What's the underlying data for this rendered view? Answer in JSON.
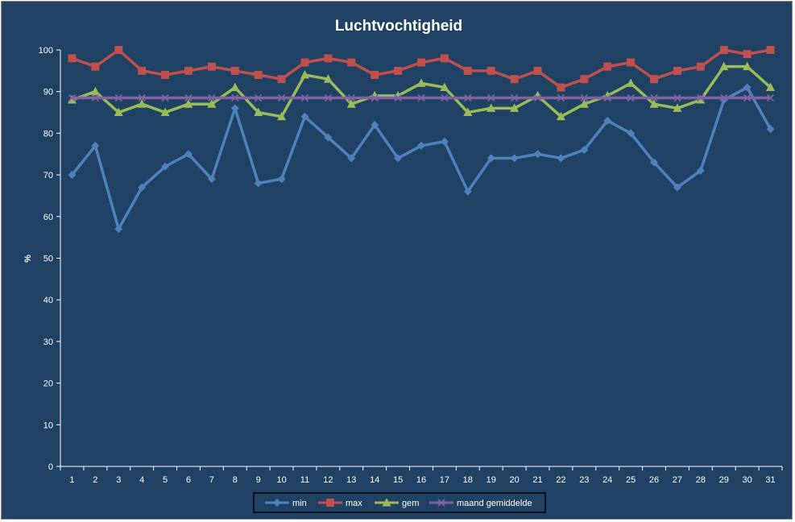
{
  "chart_data": {
    "type": "line",
    "title": "Luchtvochtigheid",
    "xlabel": "",
    "ylabel": "%",
    "ylim": [
      0,
      100
    ],
    "yticks": [
      0,
      10,
      20,
      30,
      40,
      50,
      60,
      70,
      80,
      90,
      100
    ],
    "categories": [
      "1",
      "2",
      "3",
      "4",
      "5",
      "6",
      "7",
      "8",
      "9",
      "10",
      "11",
      "12",
      "13",
      "14",
      "15",
      "16",
      "17",
      "18",
      "19",
      "20",
      "21",
      "22",
      "23",
      "24",
      "25",
      "26",
      "27",
      "28",
      "29",
      "30",
      "31"
    ],
    "grid": false,
    "legend_position": "bottom",
    "series": [
      {
        "name": "min",
        "color": "#4f81bd",
        "marker": "diamond",
        "values": [
          70,
          77,
          57,
          67,
          72,
          75,
          69,
          86,
          68,
          69,
          84,
          79,
          74,
          82,
          74,
          77,
          78,
          66,
          74,
          74,
          75,
          74,
          76,
          83,
          80,
          73,
          67,
          71,
          88,
          91,
          81
        ]
      },
      {
        "name": "max",
        "color": "#c0504d",
        "marker": "square",
        "values": [
          98,
          96,
          100,
          95,
          94,
          95,
          96,
          95,
          94,
          93,
          97,
          98,
          97,
          94,
          95,
          97,
          98,
          95,
          95,
          93,
          95,
          91,
          93,
          96,
          97,
          93,
          95,
          96,
          100,
          99,
          100
        ]
      },
      {
        "name": "gem",
        "color": "#9bbb59",
        "marker": "triangle",
        "values": [
          88,
          90,
          85,
          87,
          85,
          87,
          87,
          91,
          85,
          84,
          94,
          93,
          87,
          89,
          89,
          92,
          91,
          85,
          86,
          86,
          89,
          84,
          87,
          89,
          92,
          87,
          86,
          88,
          96,
          96,
          91
        ]
      },
      {
        "name": "maand gemiddelde",
        "color": "#8064a2",
        "marker": "x",
        "values": [
          88.5,
          88.5,
          88.5,
          88.5,
          88.5,
          88.5,
          88.5,
          88.5,
          88.5,
          88.5,
          88.5,
          88.5,
          88.5,
          88.5,
          88.5,
          88.5,
          88.5,
          88.5,
          88.5,
          88.5,
          88.5,
          88.5,
          88.5,
          88.5,
          88.5,
          88.5,
          88.5,
          88.5,
          88.5,
          88.5,
          88.5
        ]
      }
    ]
  }
}
